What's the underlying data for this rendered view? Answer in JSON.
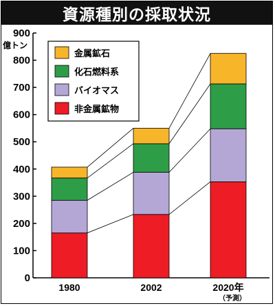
{
  "title": "資源種別の採取状況",
  "chart_data": {
    "type": "bar",
    "stacked": true,
    "categories": [
      "1980",
      "2002",
      "2020年"
    ],
    "category_notes": [
      "",
      "",
      "（予測）"
    ],
    "y_unit": "億トン",
    "ylim": [
      0,
      900
    ],
    "yticks": [
      0,
      100,
      200,
      300,
      400,
      500,
      600,
      700,
      800,
      900
    ],
    "series": [
      {
        "name": "非金属鉱物",
        "color": "#ee1c25",
        "values": [
          165,
          233,
          353
        ]
      },
      {
        "name": "バイオマス",
        "color": "#b4a7d6",
        "values": [
          120,
          155,
          195
        ]
      },
      {
        "name": "化石燃料系",
        "color": "#2e9d47",
        "values": [
          82,
          105,
          165
        ]
      },
      {
        "name": "金属鉱石",
        "color": "#f7b52a",
        "values": [
          40,
          57,
          112
        ]
      }
    ],
    "legend": [
      "金属鉱石",
      "化石燃料系",
      "バイオマス",
      "非金属鉱物"
    ],
    "legend_position": "top-left",
    "grid": false
  }
}
